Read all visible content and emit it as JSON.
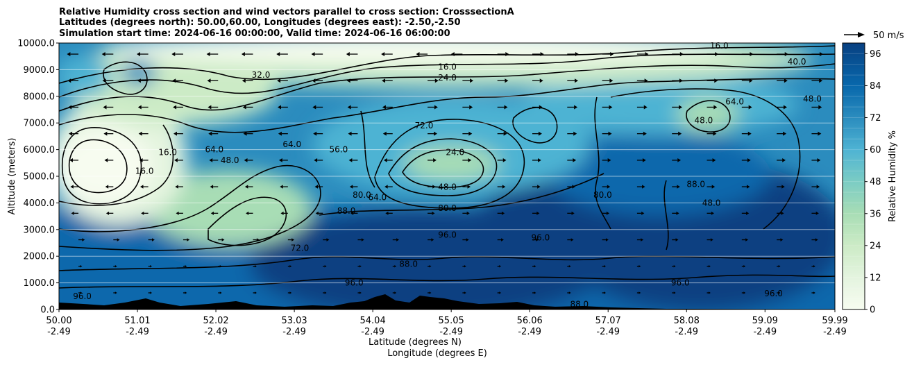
{
  "chart_data": {
    "type": "heatmap",
    "title_lines": [
      "Relative Humidity cross section and wind vectors parallel to cross section: CrosssectionA",
      "Latitudes (degrees north): 50.00,60.00, Longitudes (degrees east): -2.50,-2.50",
      "Simulation start time: 2024-06-16 00:00:00, Valid time: 2024-06-16 06:00:00"
    ],
    "xlabel": "Latitude (degrees N)",
    "xlabel2": "Longitude (degrees E)",
    "ylabel": "Altitude (meters)",
    "colorbar_label": "Relative Humidity %",
    "quiver_key_label": "50 m/s",
    "x_ticks": [
      {
        "lat": "50.00",
        "lon": "-2.49"
      },
      {
        "lat": "51.01",
        "lon": "-2.49"
      },
      {
        "lat": "52.02",
        "lon": "-2.49"
      },
      {
        "lat": "53.03",
        "lon": "-2.49"
      },
      {
        "lat": "54.04",
        "lon": "-2.49"
      },
      {
        "lat": "55.05",
        "lon": "-2.49"
      },
      {
        "lat": "56.06",
        "lon": "-2.49"
      },
      {
        "lat": "57.07",
        "lon": "-2.49"
      },
      {
        "lat": "58.08",
        "lon": "-2.49"
      },
      {
        "lat": "59.09",
        "lon": "-2.49"
      },
      {
        "lat": "59.99",
        "lon": "-2.49"
      }
    ],
    "xlim": [
      50.0,
      59.99
    ],
    "y_ticks": [
      "0.0",
      "1000.0",
      "2000.0",
      "3000.0",
      "4000.0",
      "5000.0",
      "6000.0",
      "7000.0",
      "8000.0",
      "9000.0",
      "10000.0"
    ],
    "ylim": [
      0,
      10000
    ],
    "colorbar_ticks": [
      "0",
      "12",
      "24",
      "36",
      "48",
      "60",
      "72",
      "84",
      "96"
    ],
    "colorbar_range": [
      0,
      100
    ],
    "colormap": "GnBu",
    "grid": "horizontal",
    "contour_labels": [
      {
        "text": "16.0",
        "x": 51.1,
        "y": 5200
      },
      {
        "text": "16.0",
        "x": 51.4,
        "y": 5900
      },
      {
        "text": "32.0",
        "x": 52.6,
        "y": 8800
      },
      {
        "text": "64.0",
        "x": 52.0,
        "y": 6000
      },
      {
        "text": "48.0",
        "x": 52.2,
        "y": 5600
      },
      {
        "text": "64.0",
        "x": 53.0,
        "y": 6200
      },
      {
        "text": "72.0",
        "x": 53.1,
        "y": 2300
      },
      {
        "text": "56.0",
        "x": 53.6,
        "y": 6000
      },
      {
        "text": "88.0",
        "x": 53.7,
        "y": 3700
      },
      {
        "text": "80.0",
        "x": 53.9,
        "y": 4300
      },
      {
        "text": "64.0",
        "x": 54.1,
        "y": 4200
      },
      {
        "text": "16.0",
        "x": 55.0,
        "y": 9100
      },
      {
        "text": "24.0",
        "x": 55.0,
        "y": 8700
      },
      {
        "text": "72.0",
        "x": 54.7,
        "y": 6900
      },
      {
        "text": "24.0",
        "x": 55.1,
        "y": 5900
      },
      {
        "text": "48.0",
        "x": 55.0,
        "y": 4600
      },
      {
        "text": "80.0",
        "x": 55.0,
        "y": 3800
      },
      {
        "text": "96.0",
        "x": 55.0,
        "y": 2800
      },
      {
        "text": "88.0",
        "x": 54.5,
        "y": 1700
      },
      {
        "text": "96.0",
        "x": 53.8,
        "y": 1000
      },
      {
        "text": "96.0",
        "x": 56.2,
        "y": 2700
      },
      {
        "text": "80.0",
        "x": 57.0,
        "y": 4300
      },
      {
        "text": "88.0",
        "x": 58.2,
        "y": 4700
      },
      {
        "text": "48.0",
        "x": 58.4,
        "y": 4000
      },
      {
        "text": "64.0",
        "x": 58.7,
        "y": 7800
      },
      {
        "text": "48.0",
        "x": 58.3,
        "y": 7100
      },
      {
        "text": "40.0",
        "x": 59.5,
        "y": 9300
      },
      {
        "text": "48.0",
        "x": 59.7,
        "y": 7900
      },
      {
        "text": "16.0",
        "x": 58.5,
        "y": 9900
      },
      {
        "text": "96.0",
        "x": 58.0,
        "y": 1000
      },
      {
        "text": "96.0",
        "x": 59.2,
        "y": 600
      },
      {
        "text": "88.0",
        "x": 56.7,
        "y": 200
      },
      {
        "text": "96.0",
        "x": 50.3,
        "y": 500
      }
    ]
  }
}
